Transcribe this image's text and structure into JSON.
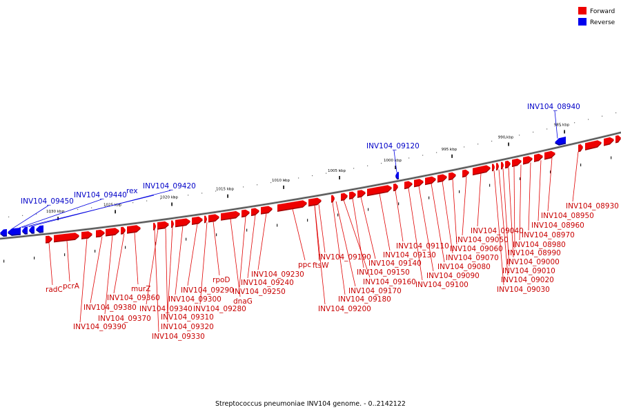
{
  "legend": {
    "forward": {
      "label": "Forward",
      "color": "#ee0000"
    },
    "reverse": {
      "label": "Reverse",
      "color": "#0000ee"
    }
  },
  "caption": "Streptococcus pneumoniae INV104 genome. - 0..2142122",
  "scale_ticks": [
    {
      "label": "985 kbp",
      "kbp": 985
    },
    {
      "label": "990 kbp",
      "kbp": 990
    },
    {
      "label": "995 kbp",
      "kbp": 995
    },
    {
      "label": "1000 kbp",
      "kbp": 1000
    },
    {
      "label": "1005 kbp",
      "kbp": 1005
    },
    {
      "label": "1010 kbp",
      "kbp": 1010
    },
    {
      "label": "1015 kbp",
      "kbp": 1015
    },
    {
      "label": "1020 kbp",
      "kbp": 1020
    },
    {
      "label": "1025 kbp",
      "kbp": 1025
    },
    {
      "label": "1030 kbp",
      "kbp": 1030
    }
  ],
  "reverse_genes": [
    {
      "label": "INV104_08940"
    },
    {
      "label": "INV104_09120"
    },
    {
      "label": "INV104_09420"
    },
    {
      "label": "rex"
    },
    {
      "label": "INV104_09440"
    },
    {
      "label": "INV104_09450"
    }
  ],
  "forward_genes": [
    {
      "label": "INV104_08930"
    },
    {
      "label": "INV104_08950"
    },
    {
      "label": "INV104_08960"
    },
    {
      "label": "INV104_08970"
    },
    {
      "label": "INV104_08980"
    },
    {
      "label": "INV104_08990"
    },
    {
      "label": "INV104_09000"
    },
    {
      "label": "INV104_09010"
    },
    {
      "label": "INV104_09020"
    },
    {
      "label": "INV104_09030"
    },
    {
      "label": "INV104_09040"
    },
    {
      "label": "INV104_09050"
    },
    {
      "label": "INV104_09060"
    },
    {
      "label": "INV104_09070"
    },
    {
      "label": "INV104_09080"
    },
    {
      "label": "INV104_09090"
    },
    {
      "label": "INV104_09100"
    },
    {
      "label": "INV104_09110"
    },
    {
      "label": "INV104_09130"
    },
    {
      "label": "INV104_09140"
    },
    {
      "label": "INV104_09150"
    },
    {
      "label": "INV104_09160"
    },
    {
      "label": "INV104_09170"
    },
    {
      "label": "INV104_09180"
    },
    {
      "label": "INV104_09190"
    },
    {
      "label": "INV104_09200"
    },
    {
      "label": "ftsW"
    },
    {
      "label": "ppc"
    },
    {
      "label": "INV104_09230"
    },
    {
      "label": "INV104_09240"
    },
    {
      "label": "INV104_09250"
    },
    {
      "label": "dnaG"
    },
    {
      "label": "rpoD"
    },
    {
      "label": "INV104_09280"
    },
    {
      "label": "INV104_09290"
    },
    {
      "label": "INV104_09300"
    },
    {
      "label": "INV104_09310"
    },
    {
      "label": "INV104_09320"
    },
    {
      "label": "INV104_09330"
    },
    {
      "label": "INV104_09340"
    },
    {
      "label": "murZ"
    },
    {
      "label": "INV104_09360"
    },
    {
      "label": "INV104_09370"
    },
    {
      "label": "INV104_09380"
    },
    {
      "label": "INV104_09390"
    },
    {
      "label": "pcrA"
    },
    {
      "label": "radC"
    }
  ]
}
